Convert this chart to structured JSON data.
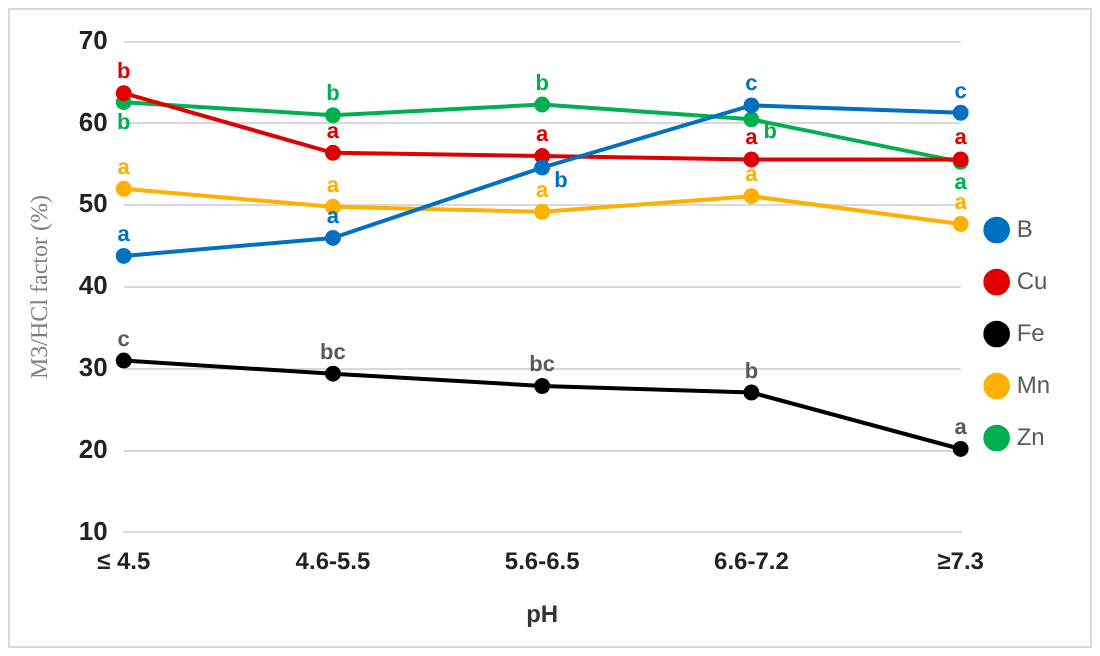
{
  "chart_data": {
    "type": "line",
    "xlabel": "pH",
    "ylabel": "M3/HCl factor (%)",
    "categories": [
      "≤ 4.5",
      "4.6-5.5",
      "5.6-6.5",
      "6.6-7.2",
      "≥7.3"
    ],
    "ylim": [
      10,
      70
    ],
    "yticks": [
      10,
      20,
      30,
      40,
      50,
      60,
      70
    ],
    "grid": "y",
    "legend": "right",
    "marker": "circle",
    "series": [
      {
        "name": "B",
        "color": "#0070c0",
        "values": [
          43.8,
          46.0,
          54.6,
          62.2,
          61.3
        ],
        "value_labels": [
          "a",
          "a",
          "b",
          "c",
          "c"
        ]
      },
      {
        "name": "Cu",
        "color": "#e00000",
        "values": [
          63.7,
          56.4,
          56.0,
          55.6,
          55.6
        ],
        "value_labels": [
          "b",
          "a",
          "a",
          "a",
          "a"
        ]
      },
      {
        "name": "Fe",
        "color": "#000000",
        "values": [
          31.0,
          29.4,
          27.9,
          27.1,
          20.2
        ],
        "value_labels": [
          "c",
          "bc",
          "bc",
          "b",
          "a"
        ]
      },
      {
        "name": "Mn",
        "color": "#ffb000",
        "values": [
          52.0,
          49.8,
          49.2,
          51.1,
          47.7
        ],
        "value_labels": [
          "a",
          "a",
          "a",
          "a",
          "a"
        ]
      },
      {
        "name": "Zn",
        "color": "#00b050",
        "values": [
          62.6,
          61.0,
          62.3,
          60.5,
          55.3
        ],
        "value_labels": [
          "b",
          "b",
          "b",
          "b",
          "a"
        ]
      }
    ]
  }
}
